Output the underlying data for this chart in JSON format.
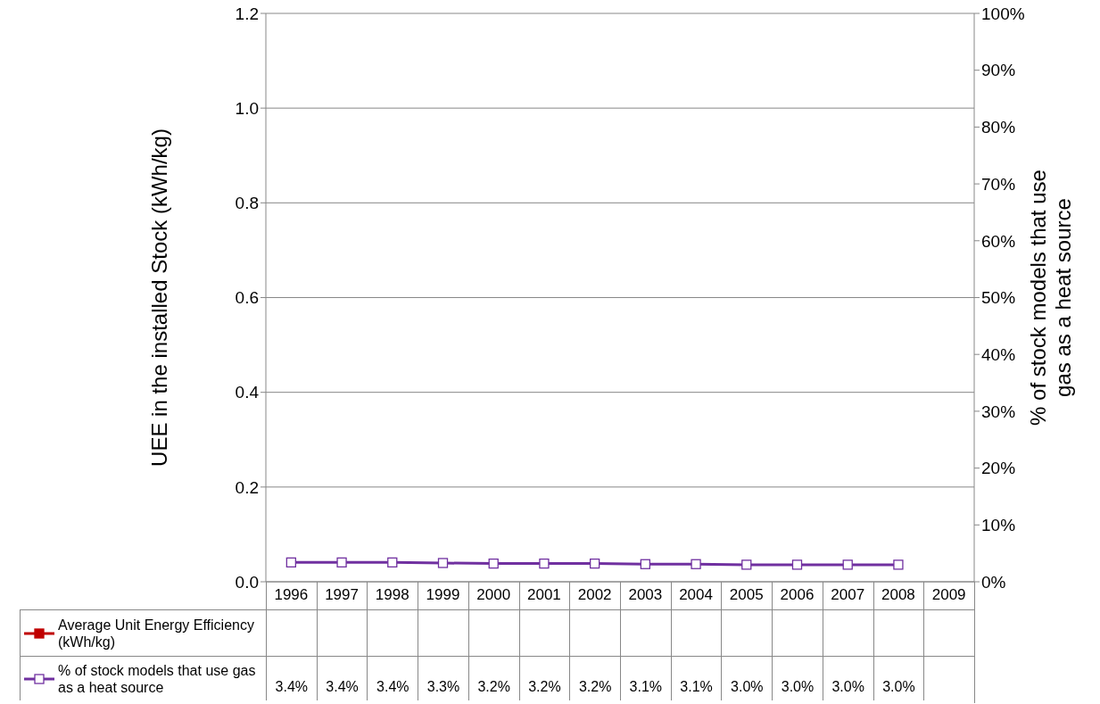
{
  "chart_data": {
    "type": "line",
    "categories": [
      "1996",
      "1997",
      "1998",
      "1999",
      "2000",
      "2001",
      "2002",
      "2003",
      "2004",
      "2005",
      "2006",
      "2007",
      "2008",
      "2009"
    ],
    "ylabel": "UEE in the installed Stock (kWh/kg)",
    "y2label": "% of stock models that use gas as a heat source",
    "ylim": [
      0,
      1.2
    ],
    "yticks": [
      {
        "value": 0,
        "label": "0.0"
      },
      {
        "value": 0.2,
        "label": "0.2"
      },
      {
        "value": 0.4,
        "label": "0.4"
      },
      {
        "value": 0.6,
        "label": "0.6"
      },
      {
        "value": 0.8,
        "label": "0.8"
      },
      {
        "value": 1,
        "label": "1.0"
      },
      {
        "value": 1.2,
        "label": "1.2"
      }
    ],
    "y2lim": [
      0,
      100
    ],
    "y2ticks": [
      {
        "value": 0,
        "label": "0%"
      },
      {
        "value": 10,
        "label": "10%"
      },
      {
        "value": 20,
        "label": "20%"
      },
      {
        "value": 30,
        "label": "30%"
      },
      {
        "value": 40,
        "label": "40%"
      },
      {
        "value": 50,
        "label": "50%"
      },
      {
        "value": 60,
        "label": "60%"
      },
      {
        "value": 70,
        "label": "70%"
      },
      {
        "value": 80,
        "label": "80%"
      },
      {
        "value": 90,
        "label": "90%"
      },
      {
        "value": 100,
        "label": "100%"
      }
    ],
    "grid": "y",
    "legend": "bottom",
    "marker": "square",
    "series": [
      {
        "name": "Average Unit Energy Efficiency (kWh/kg)",
        "color": "#c00000",
        "values": [
          null,
          null,
          null,
          null,
          null,
          null,
          null,
          null,
          null,
          null,
          null,
          null,
          null,
          null
        ]
      },
      {
        "name": "% of stock models that use gas as a heat source",
        "color": "#7030a0",
        "axis": "y2",
        "values": [
          3.4,
          3.4,
          3.4,
          3.3,
          3.2,
          3.2,
          3.2,
          3.1,
          3.1,
          3.0,
          3.0,
          3.0,
          3.0,
          null
        ],
        "value_labels": [
          "3.4%",
          "3.4%",
          "3.4%",
          "3.3%",
          "3.2%",
          "3.2%",
          "3.2%",
          "3.1%",
          "3.1%",
          "3.0%",
          "3.0%",
          "3.0%",
          "3.0%",
          null
        ]
      }
    ]
  }
}
